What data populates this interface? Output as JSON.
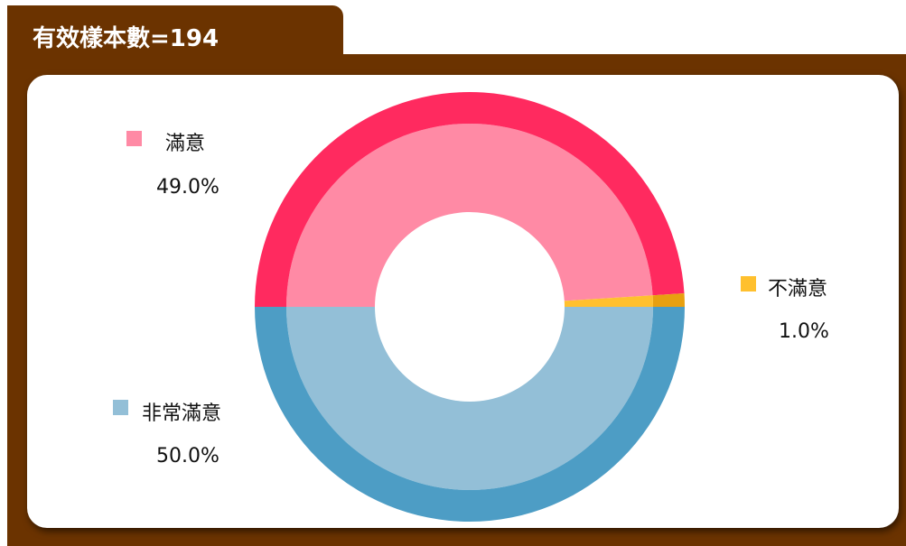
{
  "chart_data": {
    "type": "donut",
    "title": "有效樣本數=194",
    "categories": [
      "滿意",
      "不滿意",
      "非常滿意"
    ],
    "values": [
      49,
      1,
      50
    ],
    "value_labels": [
      "49.0%",
      "1.0%",
      "50.0%"
    ],
    "colors": [
      "#ff8aa5",
      "#ffc02e",
      "#93bfd7"
    ],
    "outer_colors": [
      "#ff2a5f",
      "#e8a010",
      "#4d9dc5"
    ]
  }
}
